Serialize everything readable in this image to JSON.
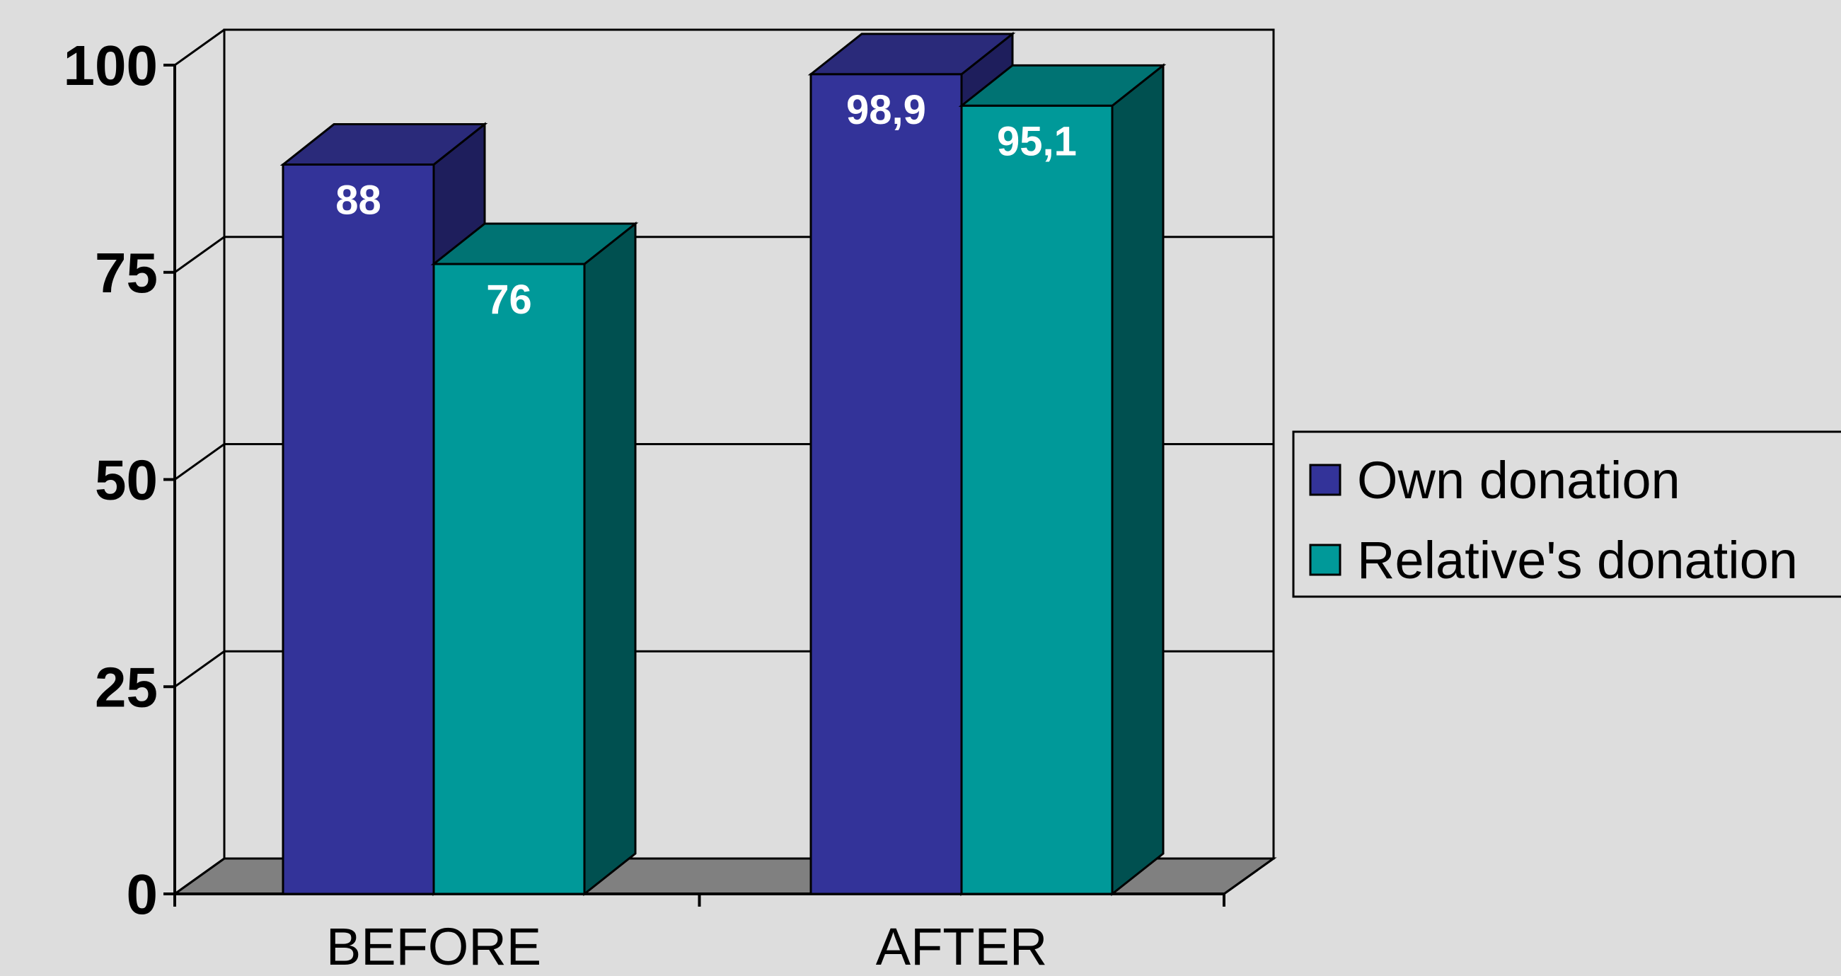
{
  "chart_data": {
    "type": "bar",
    "style": "3d-clustered-column",
    "categories": [
      "BEFORE",
      "AFTER"
    ],
    "series": [
      {
        "name": "Own donation",
        "values": [
          88,
          98.9
        ],
        "labels": [
          "88",
          "98,9"
        ],
        "color": "#333399",
        "side_color": "#1e1e5c",
        "top_color": "#2a2a7a"
      },
      {
        "name": "Relative's donation",
        "values": [
          76,
          95.1
        ],
        "labels": [
          "76",
          "95,1"
        ],
        "color": "#009999",
        "side_color": "#005050",
        "top_color": "#007373"
      }
    ],
    "ylim": [
      0,
      100
    ],
    "yticks": [
      0,
      25,
      50,
      75,
      100
    ],
    "ytick_labels": [
      "0",
      "25",
      "50",
      "75",
      "100"
    ],
    "title": "",
    "xlabel": "",
    "ylabel": "",
    "grid": true,
    "legend_position": "right",
    "floor_color": "#808080",
    "background": "#dddddd"
  }
}
